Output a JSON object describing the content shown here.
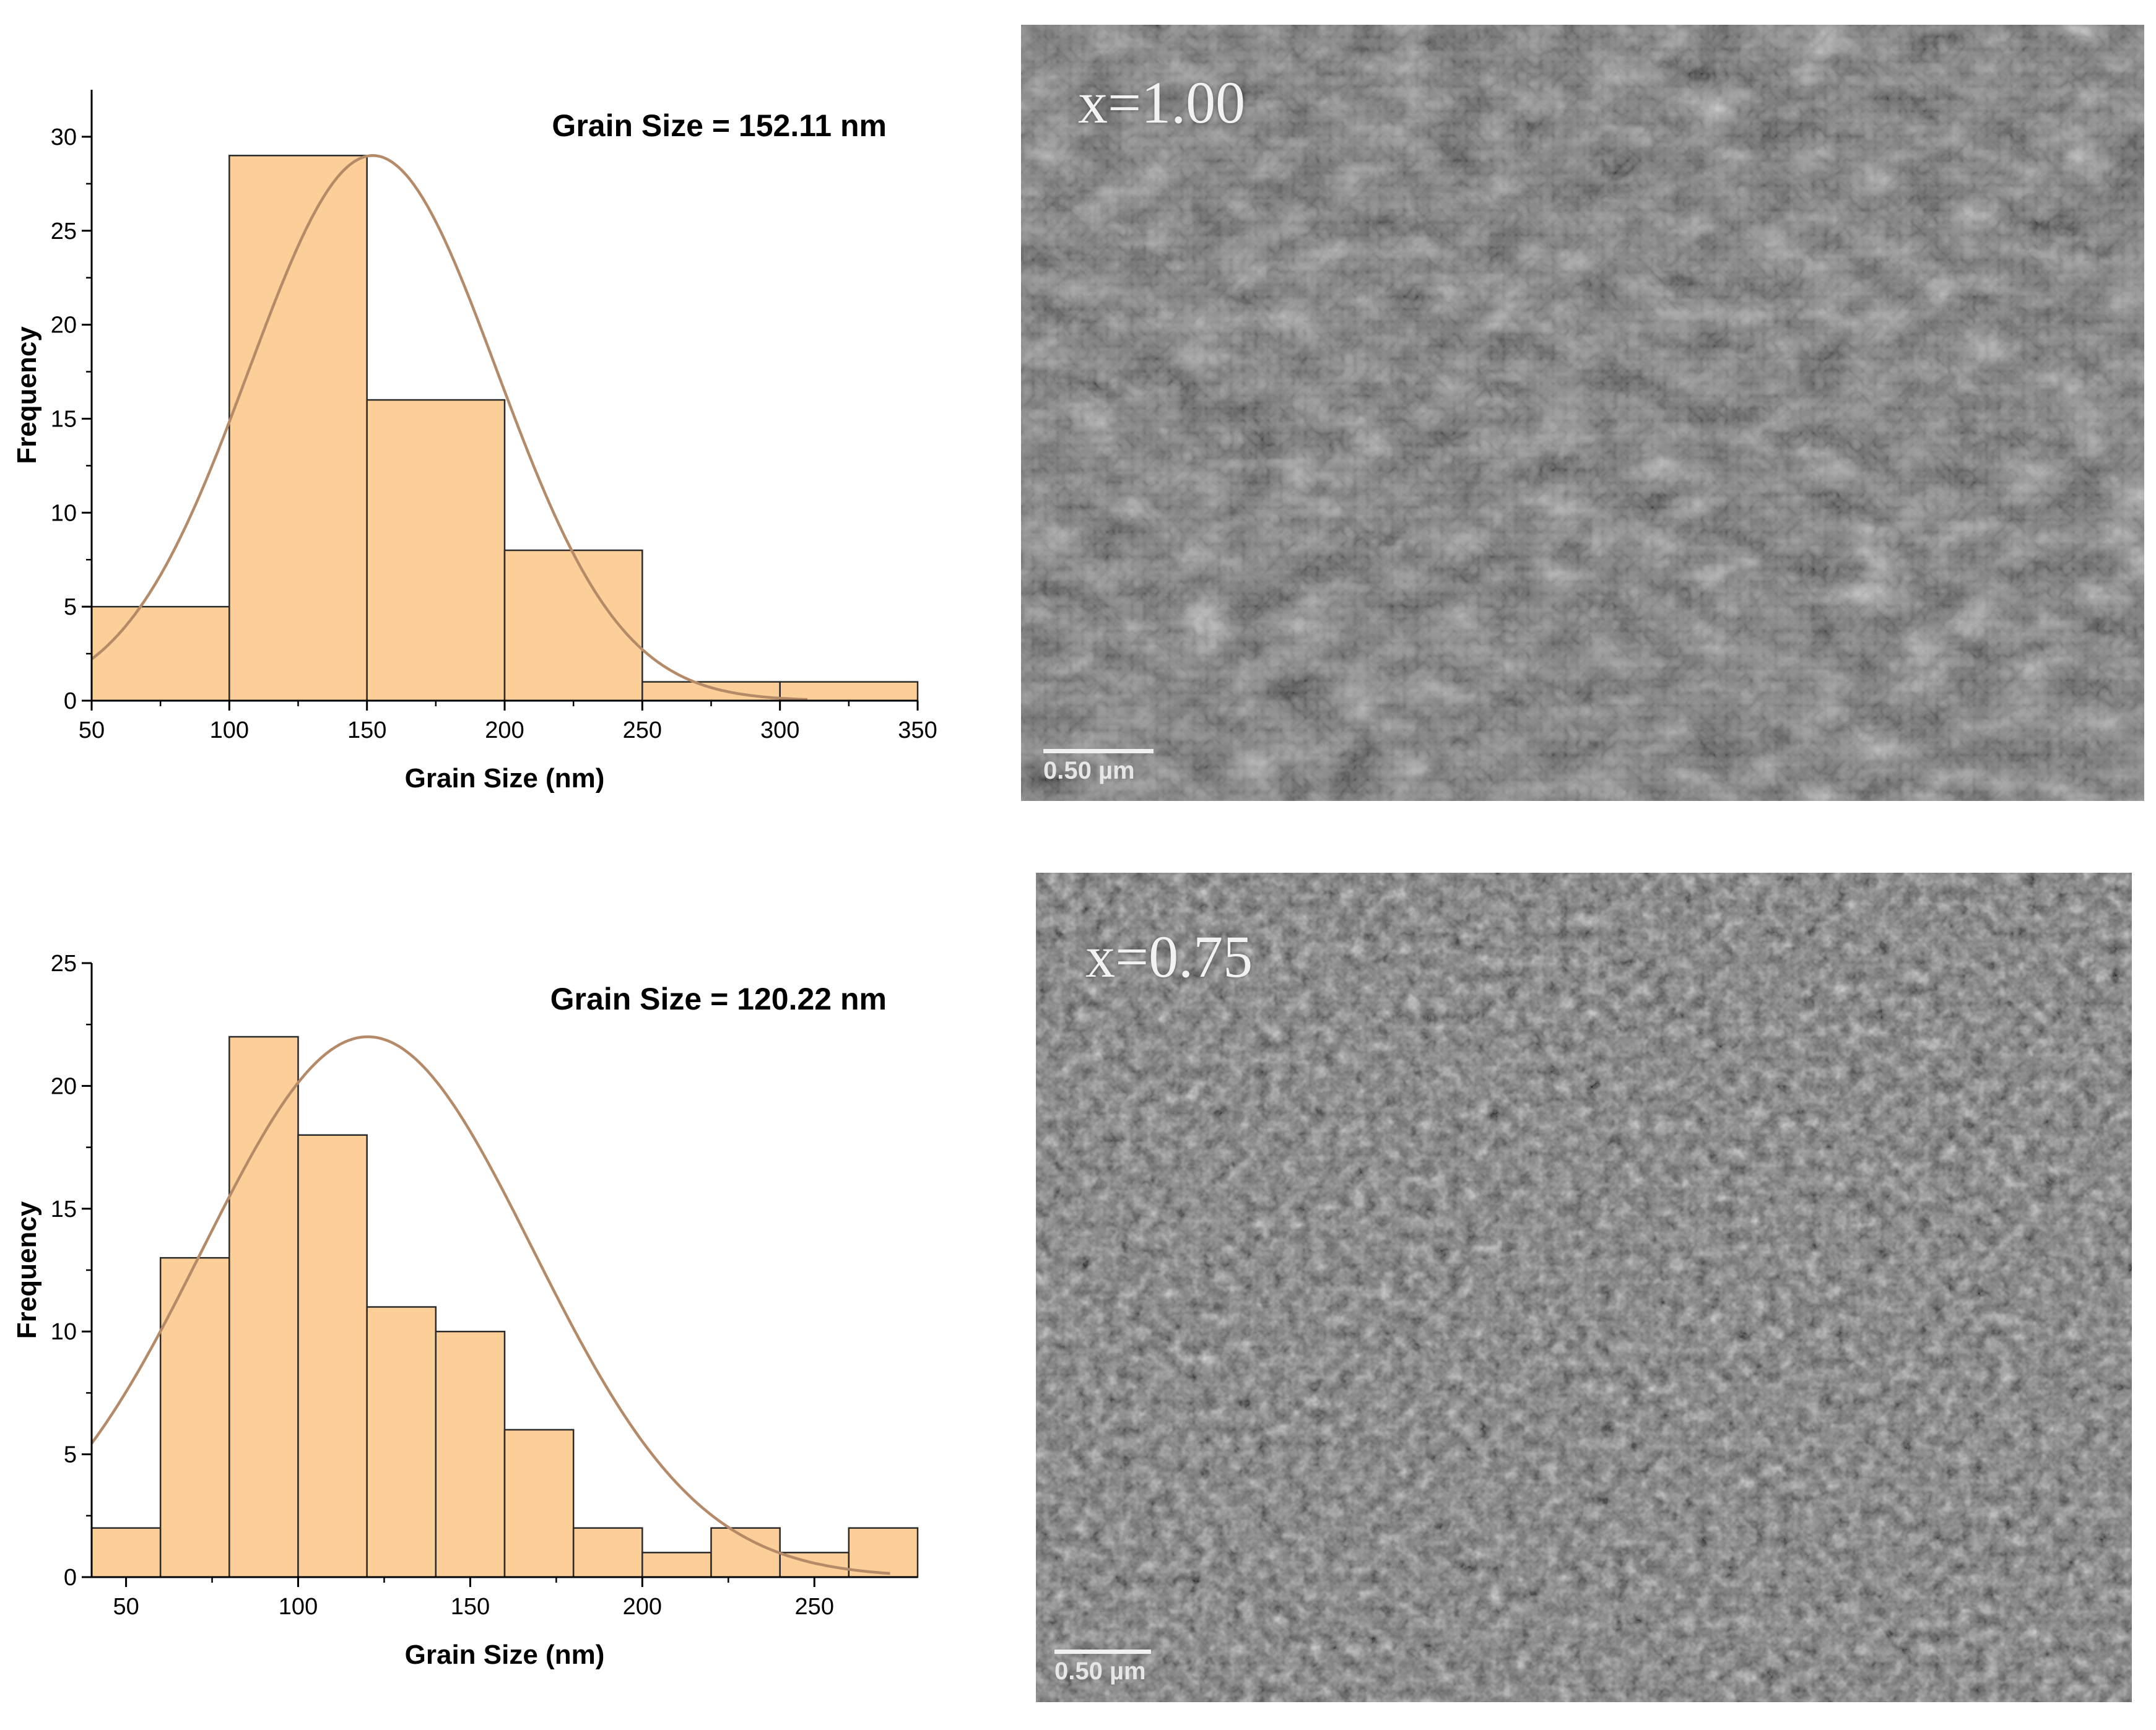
{
  "chart_data": [
    {
      "type": "bar",
      "title": "Grain Size = 152.11 nm",
      "xlabel": "Grain Size (nm)",
      "ylabel": "Frequency",
      "xlim": [
        50,
        350
      ],
      "ylim": [
        0,
        32.5
      ],
      "xticks": [
        50,
        100,
        150,
        200,
        250,
        300,
        350
      ],
      "yticks": [
        0,
        5,
        10,
        15,
        20,
        25,
        30
      ],
      "bins": [
        {
          "start": 50,
          "end": 100,
          "value": 5
        },
        {
          "start": 100,
          "end": 150,
          "value": 29
        },
        {
          "start": 150,
          "end": 200,
          "value": 16
        },
        {
          "start": 200,
          "end": 250,
          "value": 8
        },
        {
          "start": 250,
          "end": 300,
          "value": 1
        },
        {
          "start": 300,
          "end": 350,
          "value": 1
        }
      ],
      "fit": {
        "type": "normal",
        "mean": 152.11,
        "sigma": 45,
        "peak": 29,
        "x_end": 310
      },
      "bar_color": "#fdcf98",
      "fit_color": "#b48a68",
      "grid": false
    },
    {
      "type": "bar",
      "title": "Grain Size  = 120.22 nm",
      "xlabel": "Grain Size  (nm)",
      "ylabel": "Frequency",
      "xlim": [
        40,
        280
      ],
      "ylim": [
        0,
        25
      ],
      "xticks": [
        50,
        100,
        150,
        200,
        250
      ],
      "yticks": [
        0,
        5,
        10,
        15,
        20,
        25
      ],
      "bins": [
        {
          "start": 40,
          "end": 60,
          "value": 2
        },
        {
          "start": 60,
          "end": 80,
          "value": 13
        },
        {
          "start": 80,
          "end": 100,
          "value": 22
        },
        {
          "start": 100,
          "end": 120,
          "value": 18
        },
        {
          "start": 120,
          "end": 140,
          "value": 11
        },
        {
          "start": 140,
          "end": 160,
          "value": 10
        },
        {
          "start": 160,
          "end": 180,
          "value": 6
        },
        {
          "start": 180,
          "end": 200,
          "value": 2
        },
        {
          "start": 200,
          "end": 220,
          "value": 1
        },
        {
          "start": 220,
          "end": 240,
          "value": 2
        },
        {
          "start": 240,
          "end": 260,
          "value": 1
        },
        {
          "start": 260,
          "end": 280,
          "value": 2
        }
      ],
      "fit": {
        "type": "normal",
        "mean": 120.22,
        "sigma": 48,
        "peak": 22,
        "x_end": 272
      },
      "bar_color": "#fdcf98",
      "fit_color": "#b48a68",
      "grid": false
    }
  ],
  "images": [
    {
      "label": "x=1.00",
      "scale_bar": "0.50 µm",
      "texture": "large elongated grains"
    },
    {
      "label": "x=0.75",
      "scale_bar": "0.50 µm",
      "texture": "fine rounded grains"
    }
  ]
}
